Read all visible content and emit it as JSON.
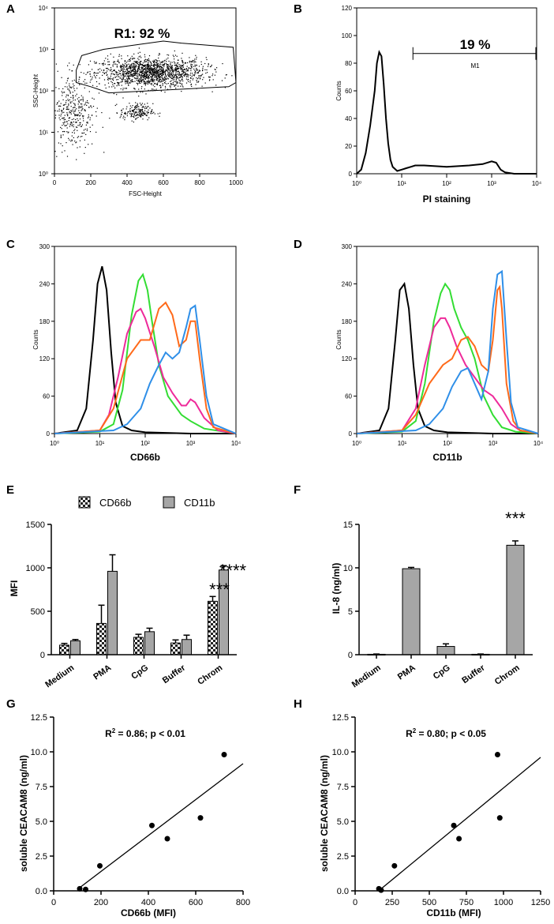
{
  "panels": {
    "A": {
      "letter": "A",
      "chart_data": {
        "type": "scatter",
        "title": "R1: 92 %",
        "xlabel": "FSC-Height",
        "ylabel": "SSC-Height",
        "x_ticks": [
          "0",
          "200",
          "400",
          "600",
          "800",
          "1000"
        ],
        "y_ticks": [
          "10⁰",
          "10¹",
          "10²",
          "10³",
          "10⁴"
        ],
        "xlim": [
          0,
          1000
        ],
        "ylim_log10": [
          0,
          4
        ],
        "gate": "R1",
        "gate_percent": 92,
        "populations": [
          {
            "name": "main",
            "x_center": 530,
            "log_y_center": 2.45,
            "x_spread": 150,
            "log_y_spread": 0.18,
            "n": 1500
          },
          {
            "name": "cluster",
            "x_center": 450,
            "log_y_center": 1.5,
            "x_spread": 45,
            "log_y_spread": 0.1,
            "n": 180
          },
          {
            "name": "debris",
            "x_center": 100,
            "log_y_center": 1.5,
            "x_spread": 60,
            "log_y_spread": 0.45,
            "n": 350
          }
        ],
        "gate_polygon": [
          [
            150,
            2.85
          ],
          [
            270,
            3.0
          ],
          [
            600,
            3.2
          ],
          [
            700,
            3.15
          ],
          [
            985,
            3.05
          ],
          [
            1000,
            2.2
          ],
          [
            960,
            2.1
          ],
          [
            300,
            1.95
          ],
          [
            200,
            2.1
          ],
          [
            120,
            2.2
          ],
          [
            120,
            2.5
          ]
        ]
      }
    },
    "B": {
      "letter": "B",
      "chart_data": {
        "type": "line",
        "title": "",
        "xlabel": "PI staining",
        "ylabel": "Counts",
        "x_ticks": [
          "10⁰",
          "10¹",
          "10²",
          "10³",
          "10⁴"
        ],
        "y_ticks": [
          "0",
          "20",
          "40",
          "60",
          "80",
          "100",
          "120"
        ],
        "xlim_log10": [
          0,
          4
        ],
        "ylim": [
          0,
          120
        ],
        "marker": {
          "label": "M1",
          "percent": "19 %",
          "x_log10": [
            1.25,
            4.0
          ],
          "y": 95
        },
        "series": [
          {
            "name": "PI",
            "color": "#000000",
            "x_log10": [
              0,
              0.1,
              0.2,
              0.3,
              0.4,
              0.45,
              0.5,
              0.55,
              0.6,
              0.65,
              0.7,
              0.75,
              0.8,
              0.9,
              1.0,
              1.1,
              1.2,
              1.3,
              1.5,
              2.0,
              2.5,
              2.8,
              3.0,
              3.1,
              3.2,
              3.3,
              3.5,
              4.0
            ],
            "y": [
              0,
              3,
              15,
              35,
              60,
              80,
              88,
              85,
              65,
              40,
              22,
              10,
              5,
              2,
              3,
              4,
              5,
              6,
              6,
              5,
              6,
              7,
              9,
              8,
              3,
              1,
              0,
              0
            ]
          }
        ]
      }
    },
    "C": {
      "letter": "C",
      "chart_data": {
        "type": "line",
        "title": "",
        "xlabel": "CD66b",
        "ylabel": "Counts",
        "x_ticks": [
          "10⁰",
          "10¹",
          "10²",
          "10³",
          "10⁴"
        ],
        "y_ticks": [
          "0",
          "60",
          "120",
          "180",
          "240",
          "300"
        ],
        "xlim_log10": [
          0,
          4
        ],
        "ylim": [
          0,
          300
        ],
        "series": [
          {
            "name": "black",
            "color": "#000000",
            "x_log10": [
              0,
              0.5,
              0.7,
              0.85,
              0.95,
              1.05,
              1.15,
              1.25,
              1.35,
              1.5,
              1.7,
              2.0,
              3.0,
              4.0
            ],
            "y": [
              0,
              5,
              40,
              150,
              240,
              268,
              230,
              130,
              50,
              12,
              5,
              2,
              0,
              0
            ]
          },
          {
            "name": "green",
            "color": "#33dd33",
            "x_log10": [
              0,
              1.0,
              1.3,
              1.5,
              1.7,
              1.85,
              1.95,
              2.05,
              2.15,
              2.3,
              2.5,
              2.8,
              3.0,
              3.3,
              4.0
            ],
            "y": [
              0,
              3,
              15,
              70,
              190,
              245,
              255,
              230,
              180,
              110,
              60,
              30,
              20,
              8,
              0
            ]
          },
          {
            "name": "magenta",
            "color": "#ee2a9a",
            "x_log10": [
              0,
              1.0,
              1.2,
              1.4,
              1.6,
              1.8,
              1.9,
              2.0,
              2.2,
              2.4,
              2.6,
              2.8,
              2.9,
              3.0,
              3.1,
              3.3,
              3.6,
              4.0
            ],
            "y": [
              0,
              5,
              30,
              90,
              160,
              195,
              200,
              185,
              140,
              90,
              65,
              45,
              45,
              55,
              50,
              25,
              5,
              0
            ]
          },
          {
            "name": "orange",
            "color": "#ff6a1a",
            "x_log10": [
              0,
              1.0,
              1.3,
              1.6,
              1.9,
              2.1,
              2.3,
              2.45,
              2.6,
              2.75,
              2.9,
              3.0,
              3.1,
              3.2,
              3.35,
              3.5,
              4.0
            ],
            "y": [
              0,
              5,
              40,
              120,
              150,
              150,
              200,
              210,
              190,
              140,
              150,
              180,
              180,
              120,
              40,
              10,
              0
            ]
          },
          {
            "name": "blue",
            "color": "#2f8fe8",
            "x_log10": [
              0,
              1.3,
              1.6,
              1.9,
              2.1,
              2.3,
              2.45,
              2.6,
              2.75,
              2.9,
              3.0,
              3.1,
              3.2,
              3.35,
              3.5,
              4.0
            ],
            "y": [
              0,
              5,
              15,
              40,
              80,
              110,
              130,
              120,
              130,
              170,
              200,
              205,
              150,
              60,
              15,
              0
            ]
          }
        ]
      }
    },
    "D": {
      "letter": "D",
      "chart_data": {
        "type": "line",
        "title": "",
        "xlabel": "CD11b",
        "ylabel": "Counts",
        "x_ticks": [
          "10⁰",
          "10¹",
          "10²",
          "10³",
          "10⁴"
        ],
        "y_ticks": [
          "0",
          "60",
          "120",
          "180",
          "240",
          "300"
        ],
        "xlim_log10": [
          0,
          4
        ],
        "ylim": [
          0,
          300
        ],
        "series": [
          {
            "name": "black",
            "color": "#000000",
            "x_log10": [
              0,
              0.5,
              0.7,
              0.85,
              0.95,
              1.05,
              1.15,
              1.25,
              1.35,
              1.5,
              1.7,
              2.0,
              3.0,
              4.0
            ],
            "y": [
              0,
              5,
              40,
              150,
              230,
              240,
              200,
              110,
              40,
              12,
              5,
              2,
              0,
              0
            ]
          },
          {
            "name": "green",
            "color": "#33dd33",
            "x_log10": [
              0,
              1.0,
              1.3,
              1.5,
              1.7,
              1.85,
              1.95,
              2.05,
              2.15,
              2.3,
              2.45,
              2.6,
              2.8,
              3.0,
              3.2,
              3.5,
              4.0
            ],
            "y": [
              0,
              3,
              20,
              80,
              180,
              225,
              240,
              230,
              200,
              170,
              150,
              120,
              60,
              30,
              10,
              3,
              0
            ]
          },
          {
            "name": "magenta",
            "color": "#ee2a9a",
            "x_log10": [
              0,
              1.0,
              1.3,
              1.5,
              1.7,
              1.85,
              1.95,
              2.05,
              2.2,
              2.4,
              2.6,
              2.8,
              3.0,
              3.2,
              3.4,
              3.6,
              4.0
            ],
            "y": [
              0,
              5,
              40,
              110,
              170,
              185,
              185,
              170,
              140,
              110,
              90,
              70,
              60,
              40,
              15,
              5,
              0
            ]
          },
          {
            "name": "orange",
            "color": "#ff6a1a",
            "x_log10": [
              0,
              1.0,
              1.3,
              1.6,
              1.9,
              2.1,
              2.3,
              2.45,
              2.6,
              2.75,
              2.9,
              3.0,
              3.1,
              3.15,
              3.2,
              3.3,
              3.45,
              3.6,
              4.0
            ],
            "y": [
              0,
              5,
              30,
              80,
              110,
              120,
              150,
              155,
              140,
              110,
              100,
              150,
              230,
              235,
              200,
              80,
              20,
              5,
              0
            ]
          },
          {
            "name": "blue",
            "color": "#2f8fe8",
            "x_log10": [
              0,
              1.3,
              1.6,
              1.9,
              2.1,
              2.3,
              2.45,
              2.6,
              2.75,
              2.9,
              3.0,
              3.1,
              3.2,
              3.3,
              3.4,
              3.55,
              4.0
            ],
            "y": [
              0,
              5,
              15,
              40,
              75,
              100,
              105,
              80,
              55,
              100,
              200,
              255,
              260,
              150,
              50,
              10,
              0
            ]
          }
        ]
      }
    },
    "E": {
      "letter": "E",
      "chart_data": {
        "type": "bar",
        "title": "",
        "xlabel": "",
        "ylabel": "MFI",
        "categories": [
          "Medium",
          "PMA",
          "CpG",
          "Buffer",
          "Chrom"
        ],
        "y_ticks": [
          "0",
          "500",
          "1000",
          "1500"
        ],
        "ylim": [
          0,
          1500
        ],
        "series": [
          {
            "name": "CD66b",
            "pattern": "checker",
            "values": [
              110,
              360,
              200,
              135,
              615
            ],
            "errors": [
              20,
              210,
              35,
              35,
              55
            ]
          },
          {
            "name": "CD11b",
            "pattern": "solid",
            "color": "#a6a6a6",
            "values": [
              160,
              960,
              265,
              175,
              975
            ],
            "errors": [
              15,
              190,
              40,
              50,
              50
            ]
          }
        ],
        "annotations": [
          {
            "category": "Chrom",
            "series": "CD66b",
            "text": "***"
          },
          {
            "category": "Chrom",
            "series": "CD11b",
            "text": "****"
          }
        ],
        "legend": "top"
      }
    },
    "F": {
      "letter": "F",
      "chart_data": {
        "type": "bar",
        "title": "",
        "xlabel": "",
        "ylabel": "IL-8 (ng/ml)",
        "categories": [
          "Medium",
          "PMA",
          "CpG",
          "Buffer",
          "Chrom"
        ],
        "y_ticks": [
          "0",
          "5",
          "10",
          "15"
        ],
        "ylim": [
          0,
          15
        ],
        "series": [
          {
            "name": "IL-8",
            "color": "#a6a6a6",
            "values": [
              0.05,
              9.9,
              0.95,
              0.05,
              12.6
            ],
            "errors": [
              0.03,
              0.15,
              0.3,
              0.03,
              0.5
            ]
          }
        ],
        "annotations": [
          {
            "category": "Chrom",
            "text": "***"
          }
        ]
      }
    },
    "G": {
      "letter": "G",
      "chart_data": {
        "type": "scatter",
        "title": "R² = 0.86; p < 0.01",
        "title_parts": [
          "R",
          "2",
          " = 0.86; p < 0.01"
        ],
        "xlabel": "CD66b (MFI)",
        "ylabel": "soluble CEACAM8 (ng/ml)",
        "x_ticks": [
          "0",
          "200",
          "400",
          "600",
          "800"
        ],
        "y_ticks": [
          "0.0",
          "2.5",
          "5.0",
          "7.5",
          "10.0",
          "12.5"
        ],
        "xlim": [
          0,
          800
        ],
        "ylim": [
          0,
          12.5
        ],
        "x": [
          110,
          135,
          195,
          415,
          480,
          620,
          720
        ],
        "y": [
          0.15,
          0.1,
          1.8,
          4.7,
          3.75,
          5.25,
          9.8
        ],
        "fit": {
          "x": [
            100,
            800
          ],
          "y": [
            0.1,
            9.15
          ]
        }
      }
    },
    "H": {
      "letter": "H",
      "chart_data": {
        "type": "scatter",
        "title": "R² = 0.80; p < 0.05",
        "title_parts": [
          "R",
          "2",
          " = 0.80; p < 0.05"
        ],
        "xlabel": "CD11b (MFI)",
        "ylabel": "soluble CEACAM8 (ng/ml)",
        "x_ticks": [
          "0",
          "250",
          "500",
          "750",
          "1000",
          "1250"
        ],
        "y_ticks": [
          "0.0",
          "2.5",
          "5.0",
          "7.5",
          "10.0",
          "12.5"
        ],
        "xlim": [
          0,
          1250
        ],
        "ylim": [
          0,
          12.5
        ],
        "x": [
          160,
          175,
          265,
          665,
          700,
          960,
          975
        ],
        "y": [
          0.15,
          0.05,
          1.8,
          4.7,
          3.75,
          9.8,
          5.25
        ],
        "fit": {
          "x": [
            170,
            1250
          ],
          "y": [
            0.1,
            9.6
          ]
        }
      }
    }
  }
}
